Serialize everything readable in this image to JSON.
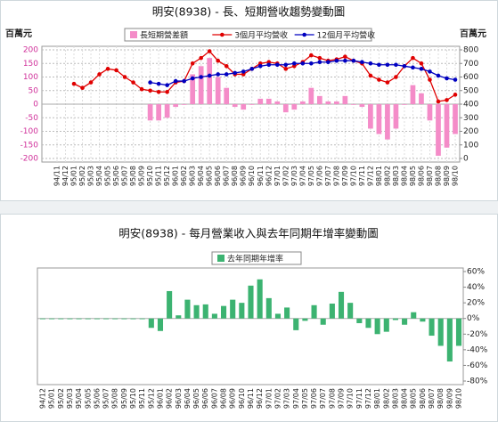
{
  "chart_data": [
    {
      "type": "combo",
      "title": "明安(8938) - 長、短期營收趨勢變動圖",
      "y_label": "百萬元",
      "y2_label": "百萬元",
      "categories": [
        "94/11",
        "94/12",
        "95/01",
        "95/02",
        "95/03",
        "95/04",
        "95/05",
        "95/06",
        "95/07",
        "95/08",
        "95/09",
        "95/10",
        "95/11",
        "95/12",
        "96/01",
        "96/02",
        "96/03",
        "96/04",
        "96/05",
        "96/06",
        "96/07",
        "96/08",
        "96/09",
        "96/10",
        "96/11",
        "96/12",
        "97/01",
        "97/02",
        "97/03",
        "97/04",
        "97/05",
        "97/06",
        "97/07",
        "97/08",
        "97/09",
        "97/10",
        "97/11",
        "97/12",
        "98/01",
        "98/02",
        "98/03",
        "98/04",
        "98/05",
        "98/06",
        "98/07",
        "98/08",
        "98/09",
        "98/10"
      ],
      "series": [
        {
          "name": "長短期營差額",
          "color": "#f48cc8",
          "kind": "bar",
          "values": [
            null,
            null,
            null,
            null,
            null,
            null,
            null,
            null,
            null,
            null,
            null,
            -60,
            -60,
            -50,
            -10,
            0,
            110,
            140,
            170,
            100,
            60,
            -10,
            -20,
            0,
            20,
            20,
            10,
            -30,
            -20,
            10,
            60,
            30,
            10,
            10,
            30,
            0,
            -10,
            -90,
            -110,
            -130,
            -90,
            0,
            70,
            40,
            -60,
            -190,
            -160,
            -110
          ]
        },
        {
          "name": "3個月平均營收",
          "color": "#e00000",
          "kind": "line",
          "axis": "y2",
          "values": [
            null,
            null,
            550,
            520,
            560,
            620,
            660,
            650,
            600,
            560,
            510,
            500,
            490,
            490,
            560,
            570,
            700,
            740,
            790,
            720,
            680,
            620,
            620,
            660,
            700,
            710,
            700,
            660,
            680,
            710,
            760,
            740,
            720,
            730,
            750,
            720,
            700,
            610,
            580,
            560,
            600,
            680,
            740,
            700,
            580,
            420,
            430,
            470
          ]
        },
        {
          "name": "12個月平均營收",
          "color": "#0000c0",
          "kind": "line",
          "axis": "y2",
          "values": [
            null,
            null,
            null,
            null,
            null,
            null,
            null,
            null,
            null,
            null,
            null,
            560,
            550,
            540,
            570,
            570,
            590,
            600,
            610,
            620,
            620,
            630,
            640,
            660,
            680,
            690,
            690,
            690,
            700,
            700,
            700,
            710,
            710,
            720,
            720,
            720,
            710,
            700,
            690,
            690,
            690,
            680,
            670,
            660,
            640,
            610,
            590,
            580
          ]
        }
      ],
      "ylim": [
        -200,
        200
      ],
      "yticks": [
        -200,
        -150,
        -100,
        -50,
        0,
        50,
        100,
        150,
        200
      ],
      "y2lim": [
        0,
        800
      ],
      "y2ticks": [
        0,
        100,
        200,
        300,
        400,
        500,
        600,
        700,
        800
      ],
      "grid": true
    },
    {
      "type": "bar",
      "title": "明安(8938) - 每月營業收入與去年同期年增率變動圖",
      "categories": [
        "94/12",
        "95/01",
        "95/02",
        "95/03",
        "95/04",
        "95/05",
        "95/06",
        "95/07",
        "95/08",
        "95/09",
        "95/10",
        "95/11",
        "95/12",
        "96/01",
        "96/02",
        "96/03",
        "96/04",
        "96/05",
        "96/06",
        "96/07",
        "96/08",
        "96/09",
        "96/10",
        "96/11",
        "96/12",
        "97/01",
        "97/02",
        "97/03",
        "97/04",
        "97/05",
        "97/06",
        "97/07",
        "97/08",
        "97/09",
        "97/10",
        "97/11",
        "97/12",
        "98/01",
        "98/02",
        "98/03",
        "98/04",
        "98/05",
        "98/06",
        "98/07",
        "98/08",
        "98/09",
        "98/10"
      ],
      "series": [
        {
          "name": "去年同期年增率",
          "color": "#3cb371",
          "values": [
            0,
            0,
            0,
            0,
            0,
            0,
            0,
            0,
            0,
            0,
            0,
            0,
            -12,
            -16,
            35,
            4,
            24,
            17,
            18,
            6,
            16,
            24,
            20,
            42,
            50,
            26,
            6,
            14,
            -15,
            -3,
            17,
            -8,
            19,
            34,
            20,
            -6,
            -12,
            -20,
            -17,
            -2,
            -8,
            8,
            -4,
            -22,
            -35,
            -55,
            -35
          ]
        }
      ],
      "ylim": [
        -80,
        60
      ],
      "yticks": [
        {
          "value": -80,
          "label": "-80%"
        },
        {
          "value": -60,
          "label": "-60%"
        },
        {
          "value": -40,
          "label": "-40%"
        },
        {
          "value": -20,
          "label": "-20%"
        },
        {
          "value": 0,
          "label": "0%"
        },
        {
          "value": 20,
          "label": "20%"
        },
        {
          "value": 40,
          "label": "40%"
        },
        {
          "value": 60,
          "label": "60%"
        }
      ],
      "grid": false
    }
  ]
}
